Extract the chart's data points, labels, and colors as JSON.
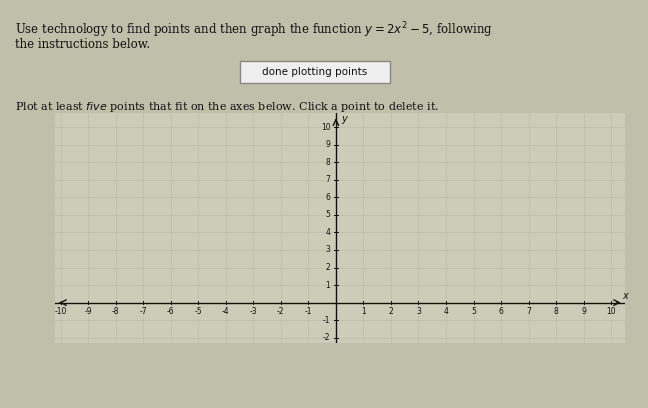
{
  "button_text": "done plotting points",
  "xlim": [
    -10,
    10
  ],
  "ylim": [
    -2,
    10
  ],
  "xticks_neg": [
    -10,
    -9,
    -8,
    -7,
    -6,
    -5,
    -4,
    -3,
    -2,
    -1
  ],
  "xticks_pos": [
    1,
    2,
    3,
    4,
    5,
    6,
    7,
    8,
    9,
    10
  ],
  "yticks": [
    -2,
    -1,
    1,
    2,
    3,
    4,
    5,
    6,
    7,
    8,
    9,
    10
  ],
  "background_color": "#bfbfaa",
  "grid_color": "#aaaaaa",
  "axis_color": "#111111",
  "text_color": "#111111",
  "button_bg": "#efefef",
  "button_border": "#888888",
  "panel_bg": "#cccdb8"
}
